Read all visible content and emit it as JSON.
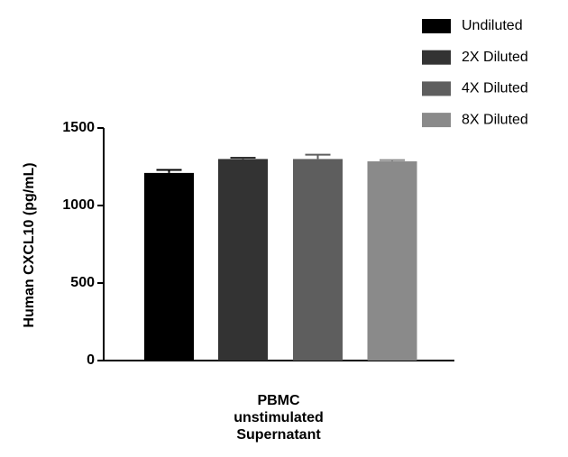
{
  "chart_data": {
    "type": "bar",
    "y_label": "Human CXCL10 (pg/mL)",
    "categories": [
      "PBMC\nunstimulated\nSupernatant"
    ],
    "series": [
      {
        "name": "Undiluted",
        "color": "#000000",
        "values": [
          1210
        ],
        "errors": [
          20
        ]
      },
      {
        "name": "2X Diluted",
        "color": "#333333",
        "values": [
          1300
        ],
        "errors": [
          8
        ]
      },
      {
        "name": "4X Diluted",
        "color": "#5e5e5e",
        "values": [
          1300
        ],
        "errors": [
          28
        ]
      },
      {
        "name": "8X Diluted",
        "color": "#8a8a8a",
        "values": [
          1285
        ],
        "errors": [
          8
        ]
      }
    ],
    "ylim": [
      0,
      1500
    ],
    "yticks": [
      0,
      500,
      1000,
      1500
    ]
  }
}
